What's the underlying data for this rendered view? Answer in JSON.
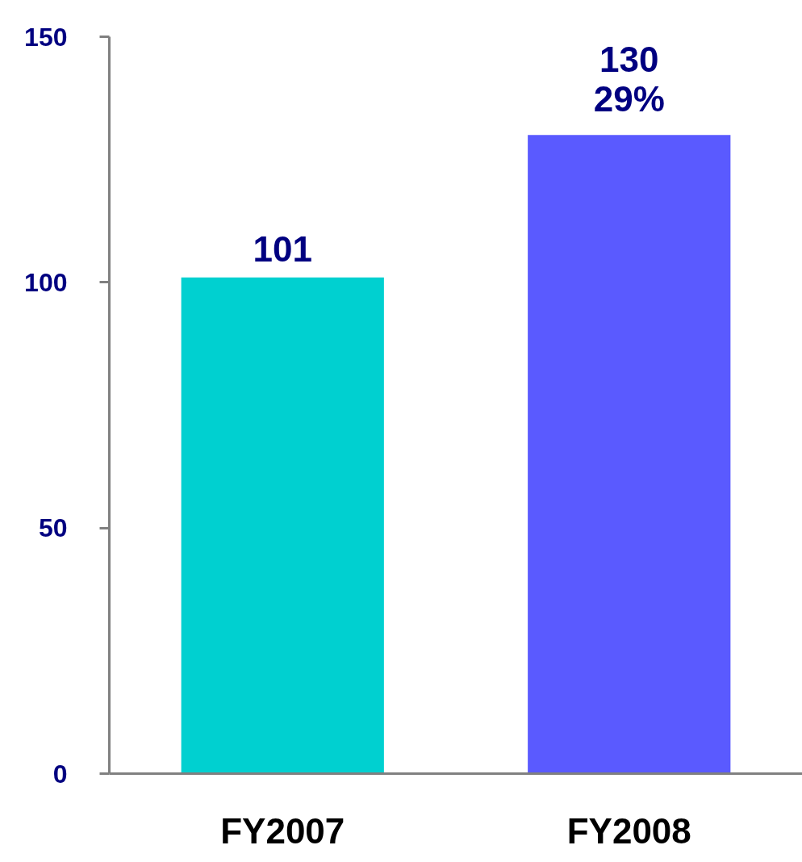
{
  "chart_data": {
    "type": "bar",
    "categories": [
      "FY2007",
      "FY2008"
    ],
    "values": [
      101,
      130
    ],
    "colors": [
      "#00d0d0",
      "#5a5aff"
    ],
    "value_labels": [
      "101",
      "130"
    ],
    "annotations": [
      {
        "text": "29%",
        "x": "FY2008",
        "y": 130
      }
    ],
    "ylim": [
      0,
      150
    ],
    "yticks": [
      0,
      50,
      100,
      150
    ],
    "grid": false
  }
}
